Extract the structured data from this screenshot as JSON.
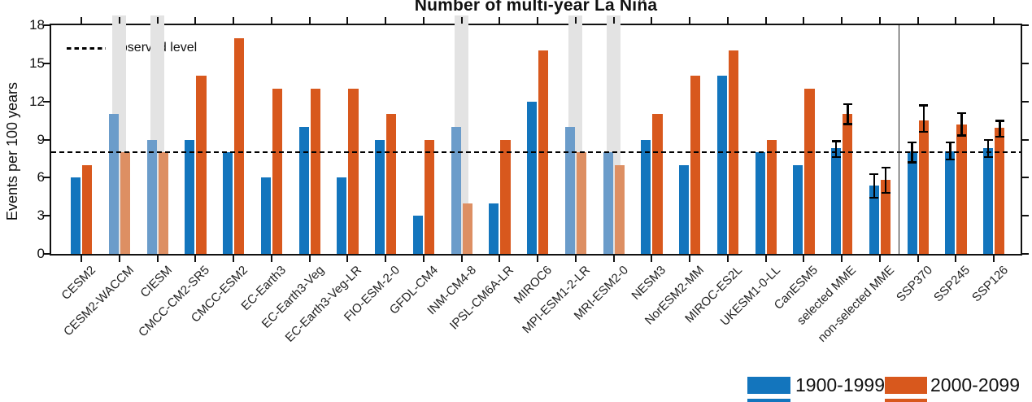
{
  "title": "Number of multi-year La Niña",
  "y_axis": {
    "label": "Events per 100 years",
    "ticks": [
      0,
      3,
      6,
      9,
      12,
      15,
      18
    ],
    "max": 18
  },
  "observed": {
    "label": "observed level",
    "value": 8
  },
  "legend": {
    "items": [
      {
        "label": "1900-1999",
        "color": "#1375bd"
      },
      {
        "label": "2000-2099",
        "color": "#d8581d"
      }
    ]
  },
  "chart_data": {
    "type": "bar",
    "title": "Number of multi-year La Niña",
    "ylabel": "Events per 100 years",
    "ylim": [
      0,
      18
    ],
    "yticks": [
      0,
      3,
      6,
      9,
      12,
      15,
      18
    ],
    "grid": false,
    "legend_position": "bottom-right",
    "observed_level": 8,
    "categories": [
      "CESM2",
      "CESM2-WACCM",
      "CIESM",
      "CMCC-CM2-SR5",
      "CMCC-ESM2",
      "EC-Earth3",
      "EC-Earth3-Veg",
      "EC-Earth3-Veg-LR",
      "FIO-ESM-2-0",
      "GFDL-CM4",
      "INM-CM4-8",
      "IPSL-CM6A-LR",
      "MIROC6",
      "MPI-ESM1-2-LR",
      "MRI-ESM2-0",
      "NESM3",
      "NorESM2-MM",
      "MIROC-ES2L",
      "UKESM1-0-LL",
      "CanESM5",
      "selected MME",
      "non-selected MME",
      "SSP370",
      "SSP245",
      "SSP126"
    ],
    "series": [
      {
        "name": "1900-1999",
        "color": "#1375bd",
        "muted_color": "#6b9cca",
        "values": [
          6,
          11,
          9,
          9,
          8,
          6,
          10,
          6,
          9,
          3,
          10,
          4,
          12,
          10,
          8,
          9,
          7,
          14,
          8,
          7,
          8.3,
          5.4,
          8.1,
          8.1,
          8.3
        ],
        "error_bars": {
          "selected MME": [
            7.6,
            8.9
          ],
          "non-selected MME": [
            4.4,
            6.3
          ],
          "SSP370": [
            7.2,
            8.8
          ],
          "SSP245": [
            7.4,
            8.8
          ],
          "SSP126": [
            7.6,
            9.0
          ]
        }
      },
      {
        "name": "2000-2099",
        "color": "#d8581d",
        "muted_color": "#dd8f63",
        "values": [
          7,
          8,
          8,
          14,
          17,
          13,
          13,
          13,
          11,
          9,
          4,
          9,
          16,
          8,
          7,
          11,
          14,
          16,
          9,
          13,
          11,
          5.8,
          10.5,
          10.2,
          9.9
        ],
        "error_bars": {
          "selected MME": [
            10.2,
            11.8
          ],
          "non-selected MME": [
            4.8,
            6.8
          ],
          "SSP370": [
            9.6,
            11.7
          ],
          "SSP245": [
            9.3,
            11.1
          ],
          "SSP126": [
            9.2,
            10.5
          ]
        }
      }
    ],
    "highlighted_categories": [
      "CESM2-WACCM",
      "CIESM",
      "INM-CM4-8",
      "MPI-ESM1-2-LR",
      "MRI-ESM2-0"
    ],
    "highlight_band_color": "#e3e3e3",
    "divider_after_category": "non-selected MME"
  }
}
